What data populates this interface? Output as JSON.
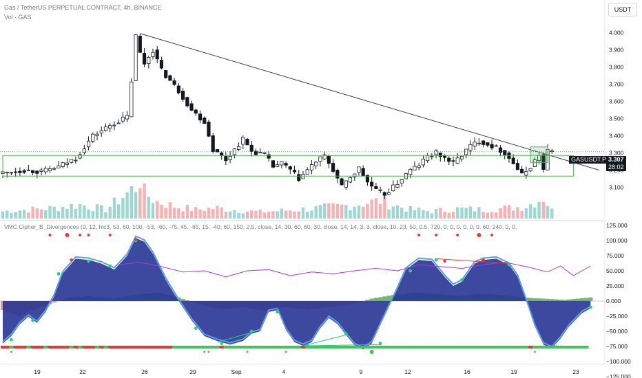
{
  "header": {
    "symbol_title": "Gas / TetherUS PERPETUAL CONTRACT, 4h, BINANCE",
    "vol_label": "Vol · GAS",
    "currency_button": "USDT"
  },
  "indicator": {
    "title": "VMC Cipher_B_Divergences (9, 12, hlc3, 53, 60, 100, -53, -60, -75, 45, -65, 15, -40, 60, 150, 2.5, close, 14, 30, 60, 60, 30, close, 14, 14, 3, 3, close, 10, 23, 50, 0.5, 720, 0, 0, 0, 0, 0, 0, 60, 240, 0, 0,"
  },
  "price_tag": {
    "symbol": "GASUSDT.P",
    "price": "3.307",
    "countdown": "28:02"
  },
  "colors": {
    "up_candle": "#26a69a",
    "down_candle": "#ef5350",
    "candle_body": "#131722",
    "trendline": "#363a45",
    "box": "#4caf50",
    "wave_fill": "#283593",
    "wave_edge": "#5c9ee6",
    "rsi_line": "#a03de0",
    "money_flow_pos": "#43a047",
    "money_flow_neg": "#e57373",
    "divergence_bull": "#26d07c",
    "divergence_bear": "#e53935",
    "bar_strip": "#43c35a",
    "bar_strip_red": "#e53935",
    "price_tag_bg": "#131722"
  },
  "chart_data": [
    {
      "type": "candlestick",
      "title": "Gas / TetherUS PERPETUAL CONTRACT, 4h, BINANCE",
      "ylim": [
        3.03,
        4.07
      ],
      "y_ticks": [
        "4.000",
        "3.900",
        "3.800",
        "3.700",
        "3.600",
        "3.500",
        "3.400",
        "3.300",
        "3.200",
        "3.100"
      ],
      "x_ticks": [
        "19",
        "22",
        "26",
        "29",
        "Sep",
        "4",
        "9",
        "12",
        "16",
        "19",
        "23"
      ],
      "close_path": [
        [
          0,
          3.18
        ],
        [
          6,
          3.2
        ],
        [
          10,
          3.19
        ],
        [
          14,
          3.22
        ],
        [
          18,
          3.27
        ],
        [
          22,
          3.4
        ],
        [
          26,
          3.46
        ],
        [
          30,
          3.51
        ],
        [
          31,
          3.72
        ],
        [
          32,
          3.98
        ],
        [
          33,
          3.88
        ],
        [
          34,
          3.82
        ],
        [
          36,
          3.9
        ],
        [
          38,
          3.78
        ],
        [
          40,
          3.72
        ],
        [
          42,
          3.66
        ],
        [
          45,
          3.55
        ],
        [
          48,
          3.48
        ],
        [
          50,
          3.32
        ],
        [
          53,
          3.26
        ],
        [
          55,
          3.32
        ],
        [
          57,
          3.38
        ],
        [
          59,
          3.31
        ],
        [
          62,
          3.29
        ],
        [
          64,
          3.22
        ],
        [
          66,
          3.24
        ],
        [
          68,
          3.2
        ],
        [
          70,
          3.15
        ],
        [
          72,
          3.2
        ],
        [
          74,
          3.25
        ],
        [
          76,
          3.28
        ],
        [
          78,
          3.2
        ],
        [
          80,
          3.1
        ],
        [
          82,
          3.16
        ],
        [
          84,
          3.21
        ],
        [
          86,
          3.13
        ],
        [
          88,
          3.08
        ],
        [
          90,
          3.06
        ],
        [
          92,
          3.1
        ],
        [
          94,
          3.15
        ],
        [
          96,
          3.2
        ],
        [
          98,
          3.23
        ],
        [
          100,
          3.28
        ],
        [
          102,
          3.3
        ],
        [
          104,
          3.27
        ],
        [
          106,
          3.24
        ],
        [
          108,
          3.29
        ],
        [
          110,
          3.34
        ],
        [
          112,
          3.37
        ],
        [
          114,
          3.35
        ],
        [
          116,
          3.33
        ],
        [
          118,
          3.3
        ],
        [
          120,
          3.24
        ],
        [
          122,
          3.17
        ],
        [
          124,
          3.22
        ],
        [
          126,
          3.29
        ],
        [
          127,
          3.2
        ],
        [
          128,
          3.31
        ]
      ],
      "volume_path": [
        [
          0,
          0.18
        ],
        [
          6,
          0.22
        ],
        [
          12,
          0.26
        ],
        [
          18,
          0.34
        ],
        [
          24,
          0.22
        ],
        [
          31,
          0.78
        ],
        [
          32,
          1.0
        ],
        [
          33,
          0.62
        ],
        [
          36,
          0.42
        ],
        [
          40,
          0.3
        ],
        [
          45,
          0.22
        ],
        [
          50,
          0.26
        ],
        [
          55,
          0.2
        ],
        [
          60,
          0.16
        ],
        [
          66,
          0.2
        ],
        [
          72,
          0.24
        ],
        [
          78,
          0.3
        ],
        [
          82,
          0.34
        ],
        [
          88,
          0.44
        ],
        [
          90,
          0.36
        ],
        [
          95,
          0.22
        ],
        [
          100,
          0.18
        ],
        [
          106,
          0.24
        ],
        [
          112,
          0.22
        ],
        [
          118,
          0.26
        ],
        [
          122,
          0.3
        ],
        [
          126,
          0.52
        ],
        [
          128,
          0.2
        ]
      ],
      "trendline": [
        [
          32,
          3.995
        ],
        [
          139,
          3.2
        ]
      ],
      "range_box": {
        "top": 3.285,
        "bottom": 3.165,
        "from": 0,
        "to": 133
      },
      "current_box": {
        "top": 3.335,
        "bottom": 3.245,
        "from": 123,
        "to": 127
      },
      "current_price": 3.307
    },
    {
      "type": "line",
      "title": "VMC Cipher_B_Divergences",
      "ylim": [
        -125000,
        125000
      ],
      "y_ticks": [
        "125.000",
        "100.000",
        "75.000",
        "50.000",
        "25.000",
        "0.000",
        "−25.000",
        "−50.000",
        "−75.000",
        "−100.000",
        "−125.000"
      ],
      "series": [
        {
          "kind": "wave",
          "values": [
            [
              0,
              -70
            ],
            [
              2,
              -58
            ],
            [
              4,
              -38
            ],
            [
              6,
              -26
            ],
            [
              8,
              -36
            ],
            [
              10,
              -18
            ],
            [
              12,
              8
            ],
            [
              14,
              46
            ],
            [
              17,
              70
            ],
            [
              20,
              68
            ],
            [
              23,
              62
            ],
            [
              26,
              52
            ],
            [
              29,
              75
            ],
            [
              31,
              104
            ],
            [
              33,
              98
            ],
            [
              35,
              78
            ],
            [
              38,
              35
            ],
            [
              41,
              0
            ],
            [
              44,
              -32
            ],
            [
              47,
              -58
            ],
            [
              50,
              -66
            ],
            [
              53,
              -72
            ],
            [
              56,
              -66
            ],
            [
              58,
              -54
            ],
            [
              60,
              -50
            ],
            [
              62,
              -18
            ],
            [
              64,
              -15
            ],
            [
              66,
              -48
            ],
            [
              68,
              -68
            ],
            [
              70,
              -74
            ],
            [
              72,
              -68
            ],
            [
              74,
              -45
            ],
            [
              76,
              -28
            ],
            [
              78,
              -38
            ],
            [
              80,
              -56
            ],
            [
              82,
              -73
            ],
            [
              84,
              -80
            ],
            [
              86,
              -70
            ],
            [
              88,
              -40
            ],
            [
              90,
              -10
            ],
            [
              92,
              20
            ],
            [
              94,
              52
            ],
            [
              97,
              68
            ],
            [
              100,
              66
            ],
            [
              103,
              40
            ],
            [
              105,
              25
            ],
            [
              107,
              32
            ],
            [
              110,
              62
            ],
            [
              112,
              68
            ],
            [
              115,
              70
            ],
            [
              118,
              60
            ],
            [
              120,
              40
            ],
            [
              122,
              0
            ],
            [
              124,
              -42
            ],
            [
              126,
              -72
            ],
            [
              128,
              -78
            ],
            [
              130,
              -62
            ],
            [
              132,
              -42
            ],
            [
              135,
              -20
            ],
            [
              137,
              -12
            ]
          ]
        },
        {
          "kind": "rsi",
          "values": [
            [
              27,
              60
            ],
            [
              32,
              64
            ],
            [
              37,
              57
            ],
            [
              42,
              48
            ],
            [
              47,
              50
            ],
            [
              52,
              40
            ],
            [
              57,
              50
            ],
            [
              62,
              52
            ],
            [
              67,
              42
            ],
            [
              72,
              48
            ],
            [
              77,
              45
            ],
            [
              82,
              50
            ],
            [
              87,
              54
            ],
            [
              92,
              50
            ],
            [
              97,
              60
            ],
            [
              102,
              57
            ],
            [
              107,
              54
            ],
            [
              112,
              60
            ],
            [
              117,
              64
            ],
            [
              122,
              57
            ],
            [
              127,
              48
            ],
            [
              130,
              58
            ],
            [
              133,
              42
            ],
            [
              137,
              58
            ]
          ]
        },
        {
          "kind": "money_flow",
          "values": [
            [
              0,
              -15
            ],
            [
              4,
              -25
            ],
            [
              8,
              -12
            ],
            [
              11,
              -5
            ],
            [
              15,
              5
            ],
            [
              20,
              8
            ],
            [
              26,
              4
            ],
            [
              31,
              10
            ],
            [
              36,
              14
            ],
            [
              41,
              6
            ],
            [
              46,
              -6
            ],
            [
              51,
              -14
            ],
            [
              56,
              -10
            ],
            [
              61,
              -16
            ],
            [
              66,
              -10
            ],
            [
              71,
              -14
            ],
            [
              76,
              -10
            ],
            [
              81,
              -6
            ],
            [
              86,
              4
            ],
            [
              91,
              10
            ],
            [
              96,
              14
            ],
            [
              101,
              12
            ],
            [
              106,
              8
            ],
            [
              111,
              12
            ],
            [
              116,
              10
            ],
            [
              121,
              6
            ],
            [
              126,
              4
            ],
            [
              131,
              2
            ],
            [
              137,
              6
            ]
          ]
        }
      ]
    }
  ]
}
